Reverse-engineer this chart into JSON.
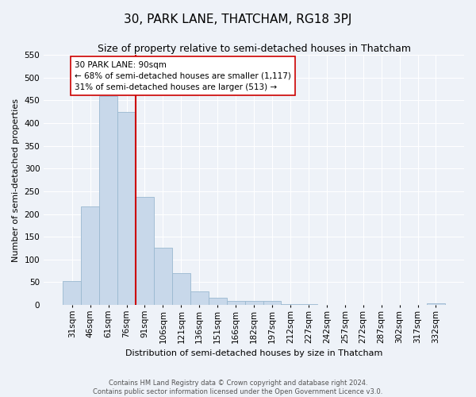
{
  "title": "30, PARK LANE, THATCHAM, RG18 3PJ",
  "subtitle": "Size of property relative to semi-detached houses in Thatcham",
  "xlabel": "Distribution of semi-detached houses by size in Thatcham",
  "ylabel": "Number of semi-detached properties",
  "bar_labels": [
    "31sqm",
    "46sqm",
    "61sqm",
    "76sqm",
    "91sqm",
    "106sqm",
    "121sqm",
    "136sqm",
    "151sqm",
    "166sqm",
    "182sqm",
    "197sqm",
    "212sqm",
    "227sqm",
    "242sqm",
    "257sqm",
    "272sqm",
    "287sqm",
    "302sqm",
    "317sqm",
    "332sqm"
  ],
  "bar_values": [
    52,
    217,
    460,
    425,
    238,
    126,
    69,
    30,
    15,
    9,
    8,
    9,
    1,
    1,
    0,
    0,
    0,
    0,
    0,
    0,
    3
  ],
  "bar_color": "#c8d8ea",
  "bar_edge_color": "#9ab8d0",
  "ylim": [
    0,
    550
  ],
  "yticks": [
    0,
    50,
    100,
    150,
    200,
    250,
    300,
    350,
    400,
    450,
    500,
    550
  ],
  "property_label": "30 PARK LANE: 90sqm",
  "pct_smaller": 68,
  "count_smaller": 1117,
  "pct_larger": 31,
  "count_larger": 513,
  "vline_x": 3.5,
  "vline_color": "#cc0000",
  "annotation_box_color": "#cc0000",
  "footer_line1": "Contains HM Land Registry data © Crown copyright and database right 2024.",
  "footer_line2": "Contains public sector information licensed under the Open Government Licence v3.0.",
  "bg_color": "#eef2f8",
  "plot_bg_color": "#eef2f8",
  "grid_color": "#ffffff",
  "title_fontsize": 11,
  "subtitle_fontsize": 9,
  "ylabel_fontsize": 8,
  "xlabel_fontsize": 8,
  "tick_fontsize": 7.5,
  "annot_fontsize": 7.5,
  "footer_fontsize": 6
}
